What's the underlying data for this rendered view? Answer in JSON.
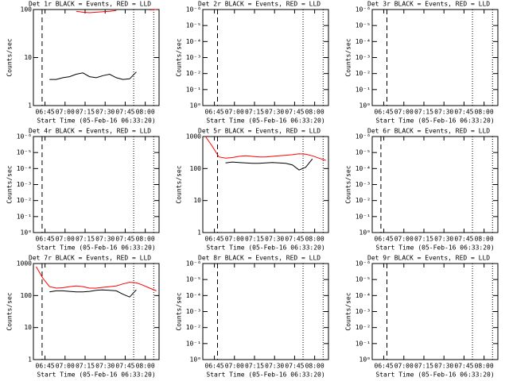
{
  "chart_data": [
    {
      "type": "line",
      "title": "Det 1r BLACK = Events, RED = LLD",
      "ylabel": "Counts/sec",
      "xlabel": "Start Time (05-Feb-16 06:33:20)",
      "log": true,
      "ylim": [
        1,
        100
      ],
      "yticks": [
        1,
        10,
        100
      ],
      "xlim": [
        3,
        97
      ],
      "xticks": [
        {
          "value": 11.67,
          "label": "06:45"
        },
        {
          "value": 26.67,
          "label": "07:00"
        },
        {
          "value": 41.67,
          "label": "07:15"
        },
        {
          "value": 56.67,
          "label": "07:30"
        },
        {
          "value": 71.67,
          "label": "07:45"
        },
        {
          "value": 86.67,
          "label": "08:00"
        }
      ],
      "dashed_lines": [
        9.5
      ],
      "dotted_lines": [
        78,
        93
      ],
      "x": [
        5,
        10,
        15,
        20,
        25,
        30,
        35,
        40,
        45,
        50,
        55,
        60,
        65,
        70,
        75,
        80,
        85,
        90,
        95
      ],
      "series": [
        {
          "color": "#000000",
          "values": [
            null,
            null,
            3.5,
            3.5,
            3.8,
            4,
            4.5,
            4.8,
            4,
            3.8,
            4.2,
            4.5,
            3.8,
            3.5,
            3.6,
            5,
            null,
            null,
            null
          ]
        },
        {
          "color": "#ff0000",
          "values": [
            null,
            null,
            null,
            null,
            null,
            null,
            92,
            88,
            86,
            88,
            90,
            92,
            95,
            null,
            null,
            null,
            null,
            98,
            100
          ]
        }
      ]
    },
    {
      "type": "line",
      "title": "Det 2r BLACK = Events, RED = LLD",
      "ylabel": "Counts/sec",
      "xlabel": "Start Time (05-Feb-16 06:33:20)",
      "log": false,
      "ylim": [
        0,
        6
      ],
      "yticks": [
        {
          "value": 0,
          "label": "10⁰"
        },
        {
          "value": 1,
          "label": "10⁻¹"
        },
        {
          "value": 2,
          "label": "10⁻²"
        },
        {
          "value": 3,
          "label": "10⁻³"
        },
        {
          "value": 4,
          "label": "10⁻⁴"
        },
        {
          "value": 5,
          "label": "10⁻⁵"
        },
        {
          "value": 6,
          "label": "10⁻⁶"
        }
      ],
      "xlim": [
        3,
        97
      ],
      "xticks": [
        {
          "value": 11.67,
          "label": "06:45"
        },
        {
          "value": 26.67,
          "label": "07:00"
        },
        {
          "value": 41.67,
          "label": "07:15"
        },
        {
          "value": 56.67,
          "label": "07:30"
        },
        {
          "value": 71.67,
          "label": "07:45"
        },
        {
          "value": 86.67,
          "label": "08:00"
        }
      ],
      "dashed_lines": [
        14
      ],
      "dotted_lines": [
        78,
        93
      ]
    },
    {
      "type": "line",
      "title": "Det 3r BLACK = Events, RED = LLD",
      "ylabel": "Counts/sec",
      "xlabel": "Start Time (05-Feb-16 06:33:20)",
      "log": false,
      "ylim": [
        0,
        6
      ],
      "yticks": [
        {
          "value": 0,
          "label": "10⁰"
        },
        {
          "value": 1,
          "label": "10⁻¹"
        },
        {
          "value": 2,
          "label": "10⁻²"
        },
        {
          "value": 3,
          "label": "10⁻³"
        },
        {
          "value": 4,
          "label": "10⁻⁴"
        },
        {
          "value": 5,
          "label": "10⁻⁵"
        },
        {
          "value": 6,
          "label": "10⁻⁶"
        }
      ],
      "xlim": [
        3,
        97
      ],
      "xticks": [
        {
          "value": 11.67,
          "label": "06:45"
        },
        {
          "value": 26.67,
          "label": "07:00"
        },
        {
          "value": 41.67,
          "label": "07:15"
        },
        {
          "value": 56.67,
          "label": "07:30"
        },
        {
          "value": 71.67,
          "label": "07:45"
        },
        {
          "value": 86.67,
          "label": "08:00"
        }
      ],
      "dashed_lines": [
        14
      ],
      "dotted_lines": [
        78,
        93
      ]
    },
    {
      "type": "line",
      "title": "Det 4r BLACK = Events, RED = LLD",
      "ylabel": "Counts/sec",
      "xlabel": "Start Time (05-Feb-16 06:33:20)",
      "log": false,
      "ylim": [
        0,
        6
      ],
      "yticks": [
        {
          "value": 0,
          "label": "10⁰"
        },
        {
          "value": 1,
          "label": "10⁻¹"
        },
        {
          "value": 2,
          "label": "10⁻²"
        },
        {
          "value": 3,
          "label": "10⁻³"
        },
        {
          "value": 4,
          "label": "10⁻⁴"
        },
        {
          "value": 5,
          "label": "10⁻⁵"
        },
        {
          "value": 6,
          "label": "10⁻⁶"
        }
      ],
      "xlim": [
        3,
        97
      ],
      "xticks": [
        {
          "value": 11.67,
          "label": "06:45"
        },
        {
          "value": 26.67,
          "label": "07:00"
        },
        {
          "value": 41.67,
          "label": "07:15"
        },
        {
          "value": 56.67,
          "label": "07:30"
        },
        {
          "value": 71.67,
          "label": "07:45"
        },
        {
          "value": 86.67,
          "label": "08:00"
        }
      ],
      "dashed_lines": [
        9.5
      ],
      "dotted_lines": [
        78,
        93
      ]
    },
    {
      "type": "line",
      "title": "Det 5r BLACK = Events, RED = LLD",
      "ylabel": "Counts/sec",
      "xlabel": "Start Time (05-Feb-16 06:33:20)",
      "log": true,
      "ylim": [
        1,
        1000
      ],
      "yticks": [
        1,
        10,
        100,
        1000
      ],
      "xlim": [
        3,
        97
      ],
      "xticks": [
        {
          "value": 11.67,
          "label": "06:45"
        },
        {
          "value": 26.67,
          "label": "07:00"
        },
        {
          "value": 41.67,
          "label": "07:15"
        },
        {
          "value": 56.67,
          "label": "07:30"
        },
        {
          "value": 71.67,
          "label": "07:45"
        },
        {
          "value": 86.67,
          "label": "08:00"
        }
      ],
      "dashed_lines": [
        14
      ],
      "dotted_lines": [
        78,
        93
      ],
      "x": [
        5,
        10,
        15,
        20,
        25,
        30,
        35,
        40,
        45,
        50,
        55,
        60,
        65,
        70,
        75,
        80,
        85,
        90,
        95
      ],
      "series": [
        {
          "color": "#000000",
          "values": [
            null,
            null,
            null,
            150,
            160,
            155,
            150,
            145,
            145,
            150,
            155,
            150,
            145,
            130,
            90,
            110,
            200,
            null,
            null
          ]
        },
        {
          "color": "#ff0000",
          "values": [
            1000,
            500,
            230,
            210,
            220,
            240,
            250,
            240,
            230,
            230,
            240,
            250,
            260,
            270,
            290,
            280,
            250,
            210,
            180
          ]
        }
      ]
    },
    {
      "type": "line",
      "title": "Det 6r BLACK = Events, RED = LLD",
      "ylabel": "Counts/sec",
      "xlabel": "Start Time (05-Feb-16 06:33:20)",
      "log": false,
      "ylim": [
        0,
        6
      ],
      "yticks": [
        {
          "value": 0,
          "label": "10⁰"
        },
        {
          "value": 1,
          "label": "10⁻¹"
        },
        {
          "value": 2,
          "label": "10⁻²"
        },
        {
          "value": 3,
          "label": "10⁻³"
        },
        {
          "value": 4,
          "label": "10⁻⁴"
        },
        {
          "value": 5,
          "label": "10⁻⁵"
        },
        {
          "value": 6,
          "label": "10⁻⁶"
        }
      ],
      "xlim": [
        3,
        97
      ],
      "xticks": [
        {
          "value": 11.67,
          "label": "06:45"
        },
        {
          "value": 26.67,
          "label": "07:00"
        },
        {
          "value": 41.67,
          "label": "07:15"
        },
        {
          "value": 56.67,
          "label": "07:30"
        },
        {
          "value": 71.67,
          "label": "07:45"
        },
        {
          "value": 86.67,
          "label": "08:00"
        }
      ],
      "dashed_lines": [
        9.5
      ],
      "dotted_lines": [
        78,
        93
      ]
    },
    {
      "type": "line",
      "title": "Det 7r BLACK = Events, RED = LLD",
      "ylabel": "Counts/sec",
      "xlabel": "Start Time (05-Feb-16 06:33:20)",
      "log": true,
      "ylim": [
        1,
        1000
      ],
      "yticks": [
        1,
        10,
        100,
        1000
      ],
      "xlim": [
        3,
        97
      ],
      "xticks": [
        {
          "value": 11.67,
          "label": "06:45"
        },
        {
          "value": 26.67,
          "label": "07:00"
        },
        {
          "value": 41.67,
          "label": "07:15"
        },
        {
          "value": 56.67,
          "label": "07:30"
        },
        {
          "value": 71.67,
          "label": "07:45"
        },
        {
          "value": 86.67,
          "label": "08:00"
        }
      ],
      "dashed_lines": [
        9.5
      ],
      "dotted_lines": [
        78,
        93
      ],
      "x": [
        5,
        10,
        15,
        20,
        25,
        30,
        35,
        40,
        45,
        50,
        55,
        60,
        65,
        70,
        75,
        80,
        85,
        90,
        95
      ],
      "series": [
        {
          "color": "#000000",
          "values": [
            null,
            null,
            130,
            140,
            140,
            135,
            130,
            130,
            135,
            145,
            150,
            145,
            140,
            110,
            90,
            150,
            null,
            null,
            null
          ]
        },
        {
          "color": "#ff0000",
          "values": [
            800,
            350,
            190,
            170,
            175,
            190,
            200,
            190,
            170,
            170,
            180,
            190,
            200,
            230,
            260,
            250,
            210,
            170,
            140
          ]
        }
      ]
    },
    {
      "type": "line",
      "title": "Det 8r BLACK = Events, RED = LLD",
      "ylabel": "Counts/sec",
      "xlabel": "Start Time (05-Feb-16 06:33:20)",
      "log": false,
      "ylim": [
        0,
        6
      ],
      "yticks": [
        {
          "value": 0,
          "label": "10⁰"
        },
        {
          "value": 1,
          "label": "10⁻¹"
        },
        {
          "value": 2,
          "label": "10⁻²"
        },
        {
          "value": 3,
          "label": "10⁻³"
        },
        {
          "value": 4,
          "label": "10⁻⁴"
        },
        {
          "value": 5,
          "label": "10⁻⁵"
        },
        {
          "value": 6,
          "label": "10⁻⁶"
        }
      ],
      "xlim": [
        3,
        97
      ],
      "xticks": [
        {
          "value": 11.67,
          "label": "06:45"
        },
        {
          "value": 26.67,
          "label": "07:00"
        },
        {
          "value": 41.67,
          "label": "07:15"
        },
        {
          "value": 56.67,
          "label": "07:30"
        },
        {
          "value": 71.67,
          "label": "07:45"
        },
        {
          "value": 86.67,
          "label": "08:00"
        }
      ],
      "dashed_lines": [
        14
      ],
      "dotted_lines": [
        78,
        93
      ]
    },
    {
      "type": "line",
      "title": "Det 9r BLACK = Events, RED = LLD",
      "ylabel": "Counts/sec",
      "xlabel": "Start Time (05-Feb-16 06:33:20)",
      "log": false,
      "ylim": [
        0,
        6
      ],
      "yticks": [
        {
          "value": 0,
          "label": "10⁰"
        },
        {
          "value": 1,
          "label": "10⁻¹"
        },
        {
          "value": 2,
          "label": "10⁻²"
        },
        {
          "value": 3,
          "label": "10⁻³"
        },
        {
          "value": 4,
          "label": "10⁻⁴"
        },
        {
          "value": 5,
          "label": "10⁻⁵"
        },
        {
          "value": 6,
          "label": "10⁻⁶"
        }
      ],
      "xlim": [
        3,
        97
      ],
      "xticks": [
        {
          "value": 11.67,
          "label": "06:45"
        },
        {
          "value": 26.67,
          "label": "07:00"
        },
        {
          "value": 41.67,
          "label": "07:15"
        },
        {
          "value": 56.67,
          "label": "07:30"
        },
        {
          "value": 71.67,
          "label": "07:45"
        },
        {
          "value": 86.67,
          "label": "08:00"
        }
      ],
      "dashed_lines": [
        14
      ],
      "dotted_lines": [
        78,
        93
      ]
    }
  ]
}
